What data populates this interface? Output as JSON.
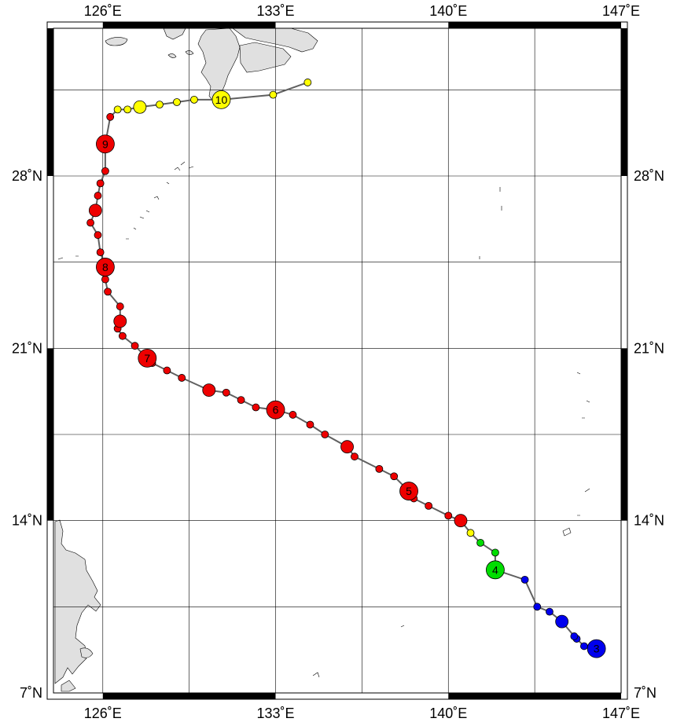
{
  "map": {
    "lon_range": [
      124,
      147
    ],
    "lat_range": [
      7,
      34
    ],
    "grid_step_deg": 3.5,
    "lon_labels": [
      "126˚E",
      "133˚E",
      "140˚E",
      "147˚E"
    ],
    "lat_labels": [
      "7˚N",
      "14˚N",
      "21˚N",
      "28˚N"
    ],
    "land_color": "#e0e0e0",
    "track_color": "#606060"
  },
  "intensity_colors": {
    "blue": "#0000ee",
    "green": "#00dd00",
    "yellow": "#ffff00",
    "red": "#ee0000"
  },
  "track": [
    {
      "lon": 146.0,
      "lat": 8.8,
      "c": "blue",
      "s": "L",
      "label": "3"
    },
    {
      "lon": 145.5,
      "lat": 8.9,
      "c": "blue",
      "s": "S"
    },
    {
      "lon": 145.2,
      "lat": 9.2,
      "c": "blue",
      "s": "S"
    },
    {
      "lon": 145.1,
      "lat": 9.3,
      "c": "blue",
      "s": "S"
    },
    {
      "lon": 144.6,
      "lat": 9.9,
      "c": "blue",
      "s": "M"
    },
    {
      "lon": 144.1,
      "lat": 10.3,
      "c": "blue",
      "s": "S"
    },
    {
      "lon": 143.6,
      "lat": 10.5,
      "c": "blue",
      "s": "S"
    },
    {
      "lon": 143.1,
      "lat": 11.6,
      "c": "blue",
      "s": "S"
    },
    {
      "lon": 141.9,
      "lat": 12.0,
      "c": "green",
      "s": "L",
      "label": "4"
    },
    {
      "lon": 141.9,
      "lat": 12.7,
      "c": "green",
      "s": "S"
    },
    {
      "lon": 141.3,
      "lat": 13.1,
      "c": "green",
      "s": "S"
    },
    {
      "lon": 140.9,
      "lat": 13.5,
      "c": "yellow",
      "s": "S"
    },
    {
      "lon": 140.5,
      "lat": 14.0,
      "c": "red",
      "s": "M"
    },
    {
      "lon": 140.0,
      "lat": 14.2,
      "c": "red",
      "s": "S"
    },
    {
      "lon": 139.2,
      "lat": 14.6,
      "c": "red",
      "s": "S"
    },
    {
      "lon": 138.6,
      "lat": 14.9,
      "c": "red",
      "s": "S"
    },
    {
      "lon": 138.4,
      "lat": 15.2,
      "c": "red",
      "s": "L",
      "label": "5"
    },
    {
      "lon": 137.8,
      "lat": 15.8,
      "c": "red",
      "s": "S"
    },
    {
      "lon": 137.2,
      "lat": 16.1,
      "c": "red",
      "s": "S"
    },
    {
      "lon": 136.2,
      "lat": 16.6,
      "c": "red",
      "s": "S"
    },
    {
      "lon": 135.9,
      "lat": 17.0,
      "c": "red",
      "s": "M"
    },
    {
      "lon": 135.0,
      "lat": 17.5,
      "c": "red",
      "s": "S"
    },
    {
      "lon": 134.4,
      "lat": 17.9,
      "c": "red",
      "s": "S"
    },
    {
      "lon": 133.7,
      "lat": 18.3,
      "c": "red",
      "s": "S"
    },
    {
      "lon": 133.0,
      "lat": 18.5,
      "c": "red",
      "s": "L",
      "label": "6"
    },
    {
      "lon": 132.2,
      "lat": 18.6,
      "c": "red",
      "s": "S"
    },
    {
      "lon": 131.6,
      "lat": 18.9,
      "c": "red",
      "s": "S"
    },
    {
      "lon": 131.0,
      "lat": 19.2,
      "c": "red",
      "s": "S"
    },
    {
      "lon": 130.3,
      "lat": 19.3,
      "c": "red",
      "s": "M"
    },
    {
      "lon": 129.2,
      "lat": 19.8,
      "c": "red",
      "s": "S"
    },
    {
      "lon": 128.6,
      "lat": 20.1,
      "c": "red",
      "s": "S"
    },
    {
      "lon": 128.0,
      "lat": 20.4,
      "c": "red",
      "s": "S"
    },
    {
      "lon": 127.8,
      "lat": 20.6,
      "c": "red",
      "s": "L",
      "label": "7"
    },
    {
      "lon": 127.3,
      "lat": 21.1,
      "c": "red",
      "s": "S"
    },
    {
      "lon": 126.8,
      "lat": 21.5,
      "c": "red",
      "s": "S"
    },
    {
      "lon": 126.6,
      "lat": 21.8,
      "c": "red",
      "s": "S"
    },
    {
      "lon": 126.7,
      "lat": 22.1,
      "c": "red",
      "s": "M"
    },
    {
      "lon": 126.7,
      "lat": 22.7,
      "c": "red",
      "s": "S"
    },
    {
      "lon": 126.2,
      "lat": 23.3,
      "c": "red",
      "s": "S"
    },
    {
      "lon": 126.1,
      "lat": 23.8,
      "c": "red",
      "s": "S"
    },
    {
      "lon": 126.1,
      "lat": 24.3,
      "c": "red",
      "s": "L",
      "label": "8"
    },
    {
      "lon": 125.9,
      "lat": 24.9,
      "c": "red",
      "s": "S"
    },
    {
      "lon": 125.8,
      "lat": 25.6,
      "c": "red",
      "s": "S"
    },
    {
      "lon": 125.5,
      "lat": 26.1,
      "c": "red",
      "s": "S"
    },
    {
      "lon": 125.7,
      "lat": 26.6,
      "c": "red",
      "s": "M"
    },
    {
      "lon": 125.8,
      "lat": 27.2,
      "c": "red",
      "s": "S"
    },
    {
      "lon": 125.9,
      "lat": 27.7,
      "c": "red",
      "s": "S"
    },
    {
      "lon": 126.1,
      "lat": 28.2,
      "c": "red",
      "s": "S"
    },
    {
      "lon": 126.1,
      "lat": 29.3,
      "c": "red",
      "s": "L",
      "label": "9"
    },
    {
      "lon": 126.3,
      "lat": 30.4,
      "c": "red",
      "s": "S"
    },
    {
      "lon": 126.6,
      "lat": 30.7,
      "c": "yellow",
      "s": "S"
    },
    {
      "lon": 127.0,
      "lat": 30.7,
      "c": "yellow",
      "s": "S"
    },
    {
      "lon": 127.5,
      "lat": 30.8,
      "c": "yellow",
      "s": "M"
    },
    {
      "lon": 128.3,
      "lat": 30.9,
      "c": "yellow",
      "s": "S"
    },
    {
      "lon": 129.0,
      "lat": 31.0,
      "c": "yellow",
      "s": "S"
    },
    {
      "lon": 129.7,
      "lat": 31.1,
      "c": "yellow",
      "s": "S"
    },
    {
      "lon": 130.8,
      "lat": 31.1,
      "c": "yellow",
      "s": "L",
      "label": "10"
    },
    {
      "lon": 132.9,
      "lat": 31.3,
      "c": "yellow",
      "s": "S"
    },
    {
      "lon": 134.3,
      "lat": 31.8,
      "c": "yellow",
      "s": "S"
    }
  ]
}
